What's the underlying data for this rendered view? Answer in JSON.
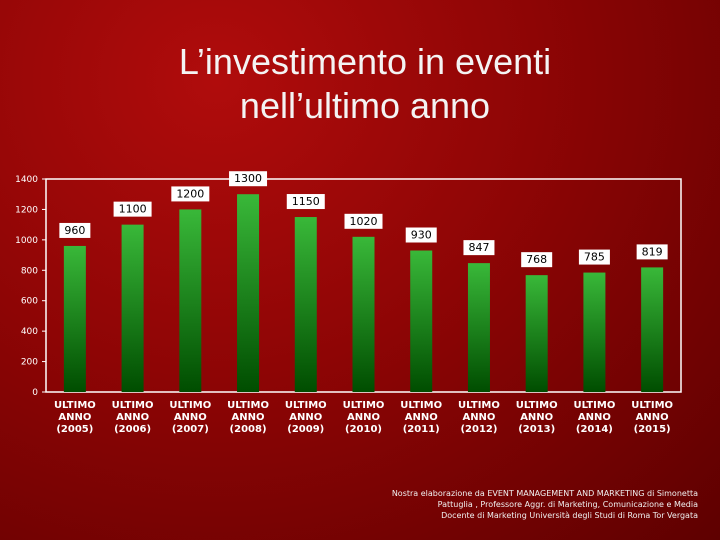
{
  "title": {
    "line1": "L’investimento in eventi",
    "line2": "nell’ultimo anno"
  },
  "colors": {
    "background": "#8e0505",
    "bar_top": "#39b839",
    "bar_bottom": "#004d00",
    "plot_border": "#ffffff",
    "text": "#ffffff"
  },
  "chart_data": {
    "type": "bar",
    "categories": [
      [
        "ULTIMO",
        "ANNO",
        "(2005)"
      ],
      [
        "ULTIMO",
        "ANNO",
        "(2006)"
      ],
      [
        "ULTIMO",
        "ANNO",
        "(2007)"
      ],
      [
        "ULTIMO",
        "ANNO",
        "(2008)"
      ],
      [
        "ULTIMO",
        "ANNO",
        "(2009)"
      ],
      [
        "ULTIMO",
        "ANNO",
        "(2010)"
      ],
      [
        "ULTIMO",
        "ANNO",
        "(2011)"
      ],
      [
        "ULTIMO",
        "ANNO",
        "(2012)"
      ],
      [
        "ULTIMO",
        "ANNO",
        "(2013)"
      ],
      [
        "ULTIMO",
        "ANNO",
        "(2014)"
      ],
      [
        "ULTIMO",
        "ANNO",
        "(2015)"
      ]
    ],
    "values": [
      960,
      1100,
      1200,
      1300,
      1150,
      1020,
      930,
      847,
      768,
      785,
      819
    ],
    "data_labels": [
      "960",
      "1100",
      "1200",
      "1300",
      "1150",
      "1020",
      "930",
      "847",
      "768",
      "785",
      "819"
    ],
    "yticks": [
      0,
      200,
      400,
      600,
      800,
      1000,
      1200,
      1400
    ],
    "ylim": [
      0,
      1400
    ],
    "grid": false,
    "legend": "none"
  },
  "footer": {
    "line1": "Nostra elaborazione da EVENT MANAGEMENT AND MARKETING di Simonetta",
    "line2": "Pattuglia , Professore Aggr. di Marketing, Comunicazione e Media",
    "line3": "Docente di Marketing Università degli Studi di Roma Tor Vergata"
  }
}
